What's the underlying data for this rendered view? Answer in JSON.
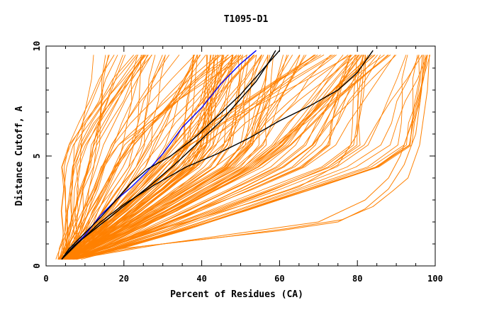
{
  "chart_data": {
    "type": "line",
    "title": "T1095-D1",
    "xlabel": "Percent of Residues (CA)",
    "ylabel": "Distance Cutoff, A",
    "xlim": [
      0,
      100
    ],
    "ylim": [
      0,
      10
    ],
    "x_ticks": [
      "0",
      "20",
      "40",
      "60",
      "80",
      "100"
    ],
    "y_ticks": [
      "0",
      "5",
      "10"
    ],
    "grid": false,
    "legend": "none",
    "colors": {
      "bulk": "#ff8000",
      "highlight_blue": "#0000ff",
      "highlight_black": "#000000"
    },
    "series_bulk_description_count": 150,
    "bands": [
      {
        "x_at_0_5": [
          2,
          8
        ],
        "x_at_5": [
          4,
          14
        ],
        "x_at_9_5": [
          9,
          28
        ],
        "weight": 0.12
      },
      {
        "x_at_0_5": [
          3,
          7
        ],
        "x_at_5": [
          14,
          42
        ],
        "x_at_9_5": [
          22,
          52
        ],
        "weight": 0.28
      },
      {
        "x_at_0_5": [
          3,
          6
        ],
        "x_at_5": [
          30,
          58
        ],
        "x_at_9_5": [
          45,
          80
        ],
        "weight": 0.35
      },
      {
        "x_at_0_5": [
          4,
          8
        ],
        "x_at_5": [
          55,
          80
        ],
        "x_at_9_5": [
          75,
          90
        ],
        "weight": 0.15
      },
      {
        "x_at_0_5": [
          5,
          9
        ],
        "x_at_5": [
          80,
          95
        ],
        "x_at_9_5": [
          88,
          99
        ],
        "weight": 0.1
      }
    ],
    "special_orange": [
      {
        "x": [
          5,
          20,
          40,
          60,
          75,
          82,
          88,
          92,
          95,
          96.5,
          97
        ],
        "y": [
          0.3,
          0.8,
          1.2,
          1.6,
          2.0,
          2.6,
          3.5,
          4.6,
          6.0,
          8.0,
          9.6
        ]
      },
      {
        "x": [
          6,
          25,
          45,
          62,
          76,
          84,
          89,
          93,
          96,
          98,
          98.5
        ],
        "y": [
          0.3,
          0.9,
          1.3,
          1.7,
          2.1,
          2.7,
          3.4,
          4.0,
          5.5,
          8.0,
          9.6
        ]
      },
      {
        "x": [
          7,
          30,
          50,
          70,
          82,
          88,
          91,
          93,
          95,
          97,
          98
        ],
        "y": [
          0.3,
          1.0,
          1.5,
          2.0,
          3.0,
          4.0,
          5.0,
          6.0,
          7.0,
          8.5,
          9.6
        ]
      },
      {
        "x": [
          6,
          20,
          40,
          55,
          65,
          75,
          80,
          82
        ],
        "y": [
          0.3,
          1.2,
          2.2,
          3.0,
          3.6,
          4.6,
          6.0,
          9.6
        ]
      }
    ],
    "highlight": [
      {
        "name": "",
        "color": "#0000ff",
        "x": [
          4,
          6,
          10,
          14,
          18,
          22,
          26,
          30,
          35,
          40,
          45,
          50,
          54
        ],
        "y": [
          0.3,
          0.7,
          1.4,
          2.3,
          3.0,
          3.6,
          4.3,
          5.1,
          6.3,
          7.2,
          8.3,
          9.2,
          9.8
        ]
      },
      {
        "name": "",
        "color": "#000000",
        "x": [
          4,
          6,
          10,
          14,
          18,
          22,
          26,
          32,
          38,
          44,
          50,
          55,
          58,
          60
        ],
        "y": [
          0.3,
          0.8,
          1.5,
          2.2,
          3.0,
          3.8,
          4.4,
          5.0,
          5.8,
          6.8,
          7.8,
          8.8,
          9.4,
          9.8
        ]
      },
      {
        "name": "",
        "color": "#000000",
        "x": [
          4,
          7,
          12,
          17,
          22,
          27,
          33,
          39,
          45,
          50,
          54,
          57,
          59
        ],
        "y": [
          0.3,
          0.9,
          1.6,
          2.3,
          3.0,
          3.7,
          4.6,
          5.6,
          6.6,
          7.6,
          8.4,
          9.2,
          9.8
        ]
      },
      {
        "name": "",
        "color": "#000000",
        "x": [
          4,
          8,
          14,
          20,
          28,
          36,
          44,
          52,
          60,
          68,
          75,
          80,
          84
        ],
        "y": [
          0.3,
          1.0,
          2.0,
          2.8,
          3.7,
          4.5,
          5.1,
          5.8,
          6.6,
          7.3,
          8.0,
          8.8,
          9.8
        ]
      }
    ]
  }
}
